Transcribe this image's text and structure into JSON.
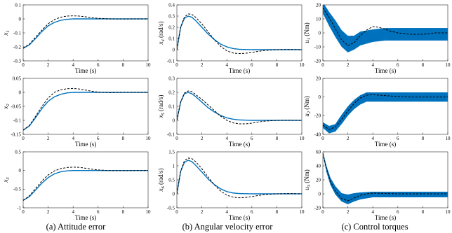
{
  "captions": [
    "(a) Attitude error",
    "(b) Angular velocity error",
    "(c) Control torques"
  ],
  "colors": {
    "blue": "#0072BD",
    "dashed": "#000000",
    "axis": "#262626",
    "grid": "#000000"
  },
  "chart_data": [
    {
      "type": "line",
      "panel": "a1",
      "ylabel": "x1",
      "xlabel": "Time (s)",
      "xlim": [
        0,
        10
      ],
      "ylim": [
        -0.3,
        0.1
      ],
      "xticks": [
        0,
        2,
        4,
        6,
        8,
        10
      ],
      "yticks": [
        -0.3,
        -0.2,
        -0.1,
        0,
        0.1
      ],
      "yticklabels": [
        "-0.3",
        "-0.2",
        "-0.1",
        "0",
        "0.1"
      ],
      "series": [
        {
          "style": "solid",
          "x": [
            0,
            0.5,
            1,
            1.5,
            2,
            2.5,
            3,
            3.5,
            4,
            5,
            6,
            7,
            8,
            9,
            10
          ],
          "y": [
            -0.21,
            -0.185,
            -0.14,
            -0.09,
            -0.05,
            -0.025,
            -0.01,
            -0.003,
            0,
            0,
            0,
            0,
            0,
            0,
            0
          ]
        },
        {
          "style": "dashed",
          "x": [
            0,
            0.5,
            1,
            1.5,
            2,
            2.5,
            3,
            3.5,
            4,
            4.5,
            5,
            5.5,
            6,
            7,
            8,
            9,
            10
          ],
          "y": [
            -0.21,
            -0.18,
            -0.13,
            -0.08,
            -0.035,
            -0.005,
            0.012,
            0.02,
            0.022,
            0.02,
            0.015,
            0.009,
            0.004,
            0,
            -0.001,
            0,
            0
          ]
        }
      ]
    },
    {
      "type": "line",
      "panel": "a2",
      "ylabel": "x2",
      "xlabel": "Time (s)",
      "xlim": [
        0,
        10
      ],
      "ylim": [
        -0.15,
        0.05
      ],
      "xticks": [
        0,
        2,
        4,
        6,
        8,
        10
      ],
      "yticks": [
        -0.15,
        -0.1,
        -0.05,
        0,
        0.05
      ],
      "yticklabels": [
        "-0.15",
        "-0.1",
        "-0.05",
        "0",
        "0.05"
      ],
      "series": [
        {
          "style": "solid",
          "x": [
            0,
            0.5,
            1,
            1.5,
            2,
            2.5,
            3,
            3.5,
            4,
            5,
            6,
            7,
            8,
            9,
            10
          ],
          "y": [
            -0.135,
            -0.12,
            -0.09,
            -0.058,
            -0.032,
            -0.016,
            -0.007,
            -0.002,
            0,
            0,
            0,
            0,
            0,
            0,
            0
          ]
        },
        {
          "style": "dashed",
          "x": [
            0,
            0.5,
            1,
            1.5,
            2,
            2.5,
            3,
            3.5,
            4,
            4.5,
            5,
            5.5,
            6,
            7,
            8,
            9,
            10
          ],
          "y": [
            -0.135,
            -0.118,
            -0.085,
            -0.05,
            -0.02,
            0,
            0.009,
            0.013,
            0.014,
            0.012,
            0.008,
            0.004,
            0.001,
            -0.001,
            0,
            0,
            0
          ]
        }
      ]
    },
    {
      "type": "line",
      "panel": "a3",
      "ylabel": "x3",
      "xlabel": "Time (s)",
      "xlim": [
        0,
        10
      ],
      "ylim": [
        -1,
        0.5
      ],
      "xticks": [
        0,
        2,
        4,
        6,
        8,
        10
      ],
      "yticks": [
        -1,
        -0.5,
        0,
        0.5
      ],
      "yticklabels": [
        "-1",
        "-0.5",
        "0",
        "0.5"
      ],
      "series": [
        {
          "style": "solid",
          "x": [
            0,
            0.5,
            1,
            1.5,
            2,
            2.5,
            3,
            3.5,
            4,
            5,
            6,
            7,
            8,
            9,
            10
          ],
          "y": [
            -0.8,
            -0.7,
            -0.52,
            -0.34,
            -0.19,
            -0.09,
            -0.035,
            -0.01,
            0,
            0,
            0,
            0,
            0,
            0,
            0
          ]
        },
        {
          "style": "dashed",
          "x": [
            0,
            0.5,
            1,
            1.5,
            2,
            2.5,
            3,
            3.5,
            4,
            4.5,
            5,
            5.5,
            6,
            7,
            8,
            9,
            10
          ],
          "y": [
            -0.8,
            -0.68,
            -0.48,
            -0.28,
            -0.12,
            -0.01,
            0.05,
            0.08,
            0.09,
            0.085,
            0.06,
            0.035,
            0.015,
            -0.005,
            -0.005,
            0,
            0
          ]
        }
      ]
    },
    {
      "type": "line",
      "panel": "b1",
      "ylabel": "x4 (rad/s)",
      "xlabel": "Time (s)",
      "xlim": [
        0,
        10
      ],
      "ylim": [
        -0.1,
        0.4
      ],
      "xticks": [
        0,
        2,
        4,
        6,
        8,
        10
      ],
      "yticks": [
        -0.1,
        0,
        0.1,
        0.2,
        0.3,
        0.4
      ],
      "yticklabels": [
        "-0.1",
        "0",
        "0.1",
        "0.2",
        "0.3",
        "0.4"
      ],
      "series": [
        {
          "style": "solid",
          "x": [
            0,
            0.3,
            0.6,
            0.9,
            1.2,
            1.5,
            2,
            2.5,
            3,
            3.5,
            4,
            4.5,
            5,
            6,
            7,
            8,
            9,
            10
          ],
          "y": [
            0,
            0.2,
            0.28,
            0.3,
            0.29,
            0.26,
            0.2,
            0.14,
            0.09,
            0.05,
            0.025,
            0.01,
            0.003,
            0,
            0,
            0,
            0,
            0
          ]
        },
        {
          "style": "dashed",
          "x": [
            0,
            0.3,
            0.6,
            0.9,
            1.2,
            1.5,
            2,
            2.5,
            3,
            3.5,
            4,
            4.5,
            5,
            5.5,
            6,
            6.5,
            7,
            8,
            9,
            10
          ],
          "y": [
            0,
            0.2,
            0.29,
            0.32,
            0.315,
            0.29,
            0.23,
            0.16,
            0.09,
            0.03,
            -0.01,
            -0.03,
            -0.035,
            -0.032,
            -0.025,
            -0.015,
            -0.007,
            0,
            0.002,
            0
          ]
        }
      ]
    },
    {
      "type": "line",
      "panel": "b2",
      "ylabel": "x5 (rad/s)",
      "xlabel": "Time (s)",
      "xlim": [
        0,
        10
      ],
      "ylim": [
        -0.1,
        0.3
      ],
      "xticks": [
        0,
        2,
        4,
        6,
        8,
        10
      ],
      "yticks": [
        -0.1,
        0,
        0.1,
        0.2,
        0.3
      ],
      "yticklabels": [
        "-0.1",
        "0",
        "0.1",
        "0.2",
        "0.3"
      ],
      "series": [
        {
          "style": "solid",
          "x": [
            0,
            0.3,
            0.6,
            0.9,
            1.2,
            1.5,
            2,
            2.5,
            3,
            3.5,
            4,
            4.5,
            5,
            6,
            7,
            8,
            9,
            10
          ],
          "y": [
            0,
            0.13,
            0.19,
            0.2,
            0.19,
            0.17,
            0.13,
            0.09,
            0.06,
            0.035,
            0.018,
            0.008,
            0.003,
            0,
            0,
            0,
            0,
            0
          ]
        },
        {
          "style": "dashed",
          "x": [
            0,
            0.3,
            0.6,
            0.9,
            1.2,
            1.5,
            2,
            2.5,
            3,
            3.5,
            4,
            4.5,
            5,
            5.5,
            6,
            6.5,
            7,
            8,
            9,
            10
          ],
          "y": [
            0,
            0.13,
            0.195,
            0.21,
            0.205,
            0.185,
            0.15,
            0.11,
            0.07,
            0.03,
            0,
            -0.018,
            -0.025,
            -0.025,
            -0.02,
            -0.012,
            -0.006,
            0,
            0.001,
            0
          ]
        }
      ]
    },
    {
      "type": "line",
      "panel": "b3",
      "ylabel": "x6 (rad/s)",
      "xlabel": "Time (s)",
      "xlim": [
        0,
        10
      ],
      "ylim": [
        -0.5,
        1.5
      ],
      "xticks": [
        0,
        2,
        4,
        6,
        8,
        10
      ],
      "yticks": [
        -0.5,
        0,
        0.5,
        1,
        1.5
      ],
      "yticklabels": [
        "-0.5",
        "0",
        "0.5",
        "1",
        "1.5"
      ],
      "series": [
        {
          "style": "solid",
          "x": [
            0,
            0.3,
            0.6,
            0.9,
            1.2,
            1.5,
            2,
            2.5,
            3,
            3.5,
            4,
            4.5,
            5,
            6,
            7,
            8,
            9,
            10
          ],
          "y": [
            0,
            0.8,
            1.12,
            1.2,
            1.15,
            1.02,
            0.78,
            0.53,
            0.33,
            0.18,
            0.08,
            0.03,
            0.01,
            0,
            0,
            0,
            0,
            0
          ]
        },
        {
          "style": "dashed",
          "x": [
            0,
            0.3,
            0.6,
            0.9,
            1.2,
            1.5,
            2,
            2.5,
            3,
            3.5,
            4,
            4.5,
            5,
            5.5,
            6,
            6.5,
            7,
            8,
            9,
            10
          ],
          "y": [
            0,
            0.8,
            1.18,
            1.28,
            1.26,
            1.15,
            0.9,
            0.6,
            0.32,
            0.1,
            -0.05,
            -0.12,
            -0.14,
            -0.13,
            -0.1,
            -0.06,
            -0.03,
            0,
            0.01,
            0
          ]
        }
      ]
    },
    {
      "type": "line",
      "panel": "c1",
      "ylabel": "u1 (Nm)",
      "xlabel": "Time (s)",
      "xlim": [
        0,
        10
      ],
      "ylim": [
        -20,
        20
      ],
      "xticks": [
        0,
        2,
        4,
        6,
        8,
        10
      ],
      "yticks": [
        -20,
        -10,
        0,
        10,
        20
      ],
      "yticklabels": [
        "-20",
        "-10",
        "0",
        "10",
        "20"
      ],
      "series": [
        {
          "style": "solid",
          "noisy": true,
          "x": [
            0,
            0.5,
            1,
            1.5,
            2,
            2.5,
            3,
            4,
            5,
            6,
            7,
            8,
            9,
            10
          ],
          "y": [
            18,
            10,
            3,
            -4,
            -8,
            -7,
            -4,
            -2,
            -1,
            -1,
            -1,
            -1,
            -1,
            -1
          ],
          "band": [
            4,
            5,
            6,
            6,
            6,
            5,
            5,
            4.5,
            4.5,
            4.5,
            4.5,
            4.5,
            4.5,
            4.5
          ]
        },
        {
          "style": "dashed",
          "x": [
            0,
            0.5,
            1,
            1.5,
            2,
            2.5,
            3,
            3.5,
            4,
            4.5,
            5,
            5.5,
            6,
            7,
            8,
            9,
            10
          ],
          "y": [
            18,
            11,
            3,
            -5,
            -9,
            -7,
            -2,
            2,
            4.5,
            4,
            2.5,
            1,
            0,
            -1,
            -1,
            0,
            0
          ]
        }
      ]
    },
    {
      "type": "line",
      "panel": "c2",
      "ylabel": "u2 (Nm)",
      "xlabel": "Time (s)",
      "xlim": [
        0,
        10
      ],
      "ylim": [
        -40,
        20
      ],
      "xticks": [
        0,
        2,
        4,
        6,
        8,
        10
      ],
      "yticks": [
        -40,
        -20,
        0,
        20
      ],
      "yticklabels": [
        "-40",
        "-20",
        "0",
        "20"
      ],
      "series": [
        {
          "style": "solid",
          "noisy": true,
          "x": [
            0,
            0.5,
            1,
            1.5,
            2,
            2.5,
            3,
            3.5,
            4,
            5,
            6,
            7,
            8,
            9,
            10
          ],
          "y": [
            -30,
            -35,
            -33,
            -24,
            -15,
            -8,
            -3,
            0,
            0,
            0,
            0,
            0,
            0,
            0,
            0
          ],
          "band": [
            3,
            4,
            4,
            5,
            5,
            5,
            5,
            5,
            5,
            5,
            5,
            5,
            5,
            5,
            5
          ]
        },
        {
          "style": "dashed",
          "x": [
            0,
            0.5,
            1,
            1.5,
            2,
            2.5,
            3,
            3.5,
            4,
            5,
            6,
            7,
            8,
            9,
            10
          ],
          "y": [
            -30,
            -35,
            -32,
            -24,
            -15,
            -7,
            -1,
            2,
            2.5,
            1.5,
            0.5,
            0,
            0,
            0,
            0
          ]
        }
      ]
    },
    {
      "type": "line",
      "panel": "c3",
      "ylabel": "u3 (Nm)",
      "xlabel": "Time (s)",
      "xlim": [
        0,
        10
      ],
      "ylim": [
        -20,
        60
      ],
      "xticks": [
        0,
        2,
        4,
        6,
        8,
        10
      ],
      "yticks": [
        -20,
        0,
        20,
        40,
        60
      ],
      "yticklabels": [
        "-20",
        "0",
        "20",
        "40",
        "60"
      ],
      "series": [
        {
          "style": "solid",
          "noisy": true,
          "x": [
            0,
            0.3,
            0.6,
            1,
            1.5,
            2,
            2.5,
            3,
            4,
            5,
            6,
            7,
            8,
            9,
            10
          ],
          "y": [
            58,
            35,
            18,
            5,
            -5,
            -8,
            -5,
            -3,
            -1,
            -1,
            -1,
            -1,
            -1,
            -1,
            -1
          ],
          "band": [
            2,
            4,
            5,
            6,
            6,
            7,
            6,
            5,
            4,
            4,
            4,
            4,
            4,
            4,
            4
          ]
        },
        {
          "style": "dashed",
          "x": [
            0,
            0.3,
            0.6,
            1,
            1.5,
            2,
            2.5,
            3,
            3.5,
            4,
            5,
            6,
            7,
            8,
            9,
            10
          ],
          "y": [
            58,
            35,
            18,
            4,
            -7,
            -10,
            -6,
            -2,
            0,
            1,
            0.5,
            0,
            0,
            0,
            0,
            0
          ]
        }
      ]
    }
  ]
}
